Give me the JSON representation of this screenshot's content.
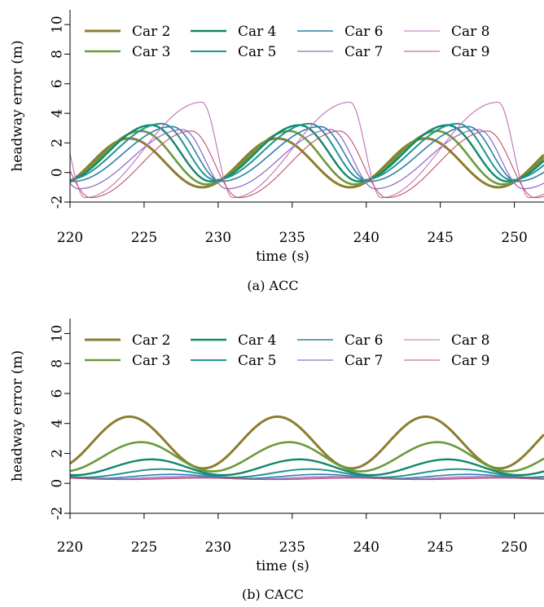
{
  "figure": {
    "panels": [
      {
        "caption": "(a) ACC"
      },
      {
        "caption": "(b) CACC"
      }
    ]
  },
  "chart_data": [
    {
      "type": "line",
      "caption": "(a) ACC",
      "xlabel": "time (s)",
      "ylabel": "headway error (m)",
      "xlim": [
        220,
        252
      ],
      "ylim": [
        -2,
        11
      ],
      "xticks": [
        220,
        225,
        230,
        235,
        240,
        245,
        250
      ],
      "yticks": [
        -2,
        0,
        2,
        4,
        6,
        8,
        10
      ],
      "grid": false,
      "legend": "top, 4 columns",
      "period": 10,
      "series": [
        {
          "name": "Car 2",
          "color": "#8c7d2f",
          "width": 3.0,
          "peak_time": 224.0,
          "peak": 2.3,
          "trough_time": 228.9,
          "trough": -1.0
        },
        {
          "name": "Car 3",
          "color": "#6a9a3a",
          "width": 2.6,
          "peak_time": 224.8,
          "peak": 2.8,
          "trough_time": 229.2,
          "trough": -0.8
        },
        {
          "name": "Car 4",
          "color": "#12876a",
          "width": 2.4,
          "peak_time": 225.5,
          "peak": 3.2,
          "trough_time": 229.5,
          "trough": -0.6
        },
        {
          "name": "Car 5",
          "color": "#1f9594",
          "width": 2.0,
          "peak_time": 226.2,
          "peak": 3.3,
          "trough_time": 229.8,
          "trough": -0.5
        },
        {
          "name": "Car 6",
          "color": "#2e7fa6",
          "width": 1.6,
          "peak_time": 226.9,
          "peak": 3.1,
          "trough_time": 220.2,
          "trough": -0.6
        },
        {
          "name": "Car 7",
          "color": "#8d6fc9",
          "width": 1.3,
          "peak_time": 227.6,
          "peak": 2.9,
          "trough_time": 220.6,
          "trough": -1.1
        },
        {
          "name": "Car 8",
          "color": "#c46eb4",
          "width": 1.1,
          "peak_time": 228.9,
          "peak": 4.75,
          "trough_time": 221.0,
          "trough": -1.7
        },
        {
          "name": "Car 9",
          "color": "#c0506a",
          "width": 1.1,
          "peak_time": 228.2,
          "peak": 2.8,
          "trough_time": 221.4,
          "trough": -1.7
        }
      ]
    },
    {
      "type": "line",
      "caption": "(b) CACC",
      "xlabel": "time (s)",
      "ylabel": "headway error (m)",
      "xlim": [
        220,
        252
      ],
      "ylim": [
        -2,
        11
      ],
      "xticks": [
        220,
        225,
        230,
        235,
        240,
        245,
        250
      ],
      "yticks": [
        -2,
        0,
        2,
        4,
        6,
        8,
        10
      ],
      "grid": false,
      "legend": "top, 4 columns",
      "period": 10,
      "series": [
        {
          "name": "Car 2",
          "color": "#8c7d2f",
          "width": 3.0,
          "peak_time": 224.0,
          "peak": 4.45,
          "trough_time": 229.0,
          "trough": 1.0
        },
        {
          "name": "Car 3",
          "color": "#6a9a3a",
          "width": 2.6,
          "peak_time": 224.8,
          "peak": 2.75,
          "trough_time": 229.6,
          "trough": 0.8
        },
        {
          "name": "Car 4",
          "color": "#12876a",
          "width": 2.4,
          "peak_time": 225.5,
          "peak": 1.6,
          "trough_time": 230.3,
          "trough": 0.55
        },
        {
          "name": "Car 5",
          "color": "#1f9594",
          "width": 2.0,
          "peak_time": 226.2,
          "peak": 0.95,
          "trough_time": 231.0,
          "trough": 0.4
        },
        {
          "name": "Car 6",
          "color": "#2e7fa6",
          "width": 1.6,
          "peak_time": 226.9,
          "peak": 0.6,
          "trough_time": 231.7,
          "trough": 0.32
        },
        {
          "name": "Car 7",
          "color": "#8d6fc9",
          "width": 1.3,
          "peak_time": 227.6,
          "peak": 0.45,
          "trough_time": 232.4,
          "trough": 0.28
        },
        {
          "name": "Car 8",
          "color": "#c46eb4",
          "width": 1.1,
          "peak_time": 228.3,
          "peak": 0.38,
          "trough_time": 233.1,
          "trough": 0.26
        },
        {
          "name": "Car 9",
          "color": "#c0506a",
          "width": 1.1,
          "peak_time": 229.0,
          "peak": 0.35,
          "trough_time": 233.8,
          "trough": 0.25
        }
      ]
    }
  ]
}
